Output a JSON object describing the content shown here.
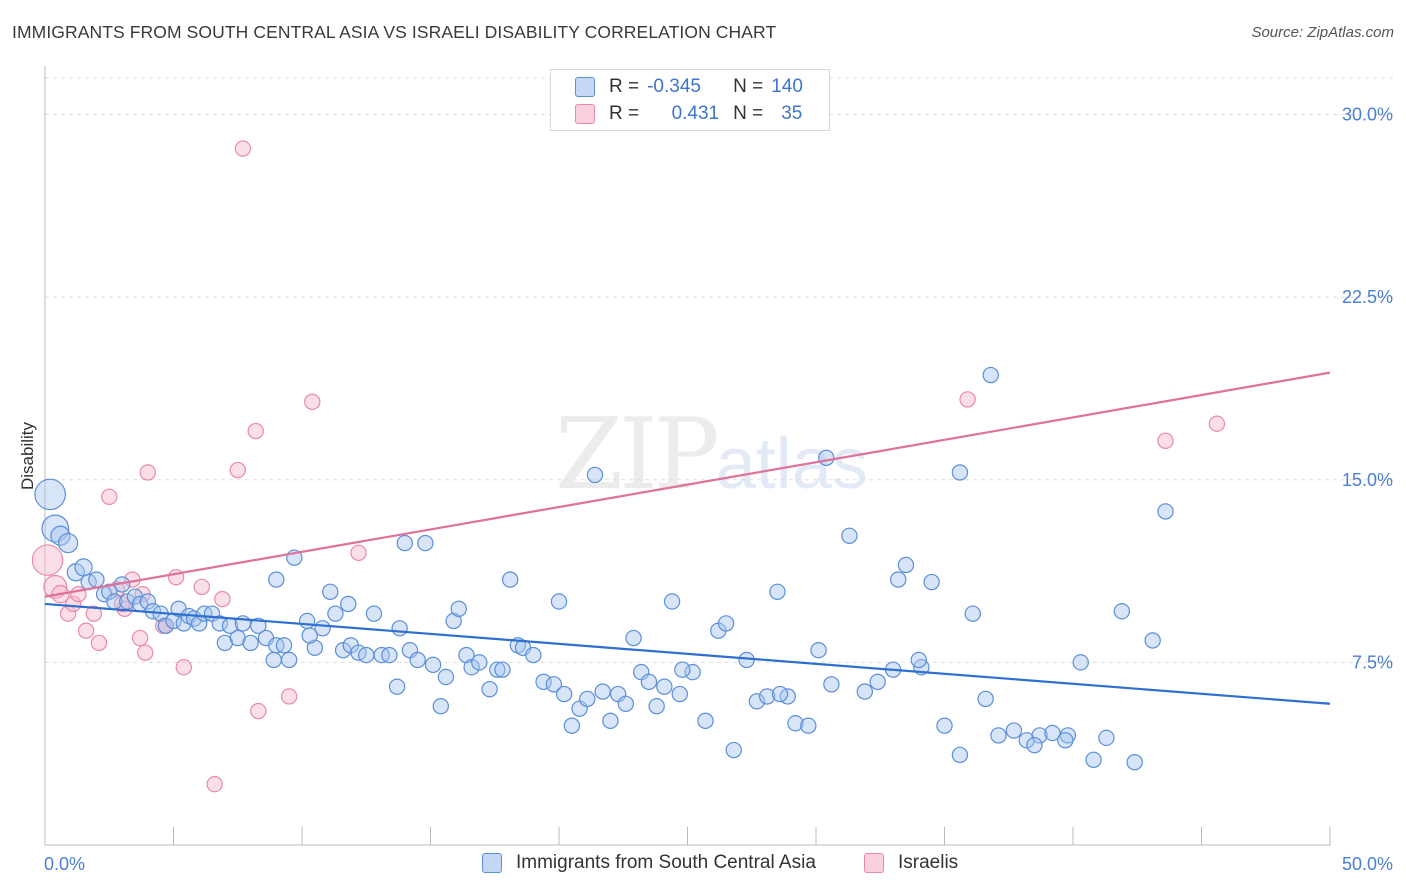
{
  "header": {
    "title": "IMMIGRANTS FROM SOUTH CENTRAL ASIA VS ISRAELI DISABILITY CORRELATION CHART",
    "source": "Source: ZipAtlas.com"
  },
  "watermark": {
    "zip": "ZIP",
    "atlas": "atlas"
  },
  "legend": {
    "rows": [
      {
        "r_label": "R =",
        "r_value": "-0.345",
        "n_label": "N =",
        "n_value": "140",
        "color": "#a9c6ef"
      },
      {
        "r_label": "R =",
        "r_value": "0.431",
        "n_label": "N =",
        "n_value": "35",
        "color": "#f6b8cc"
      }
    ]
  },
  "bottom_legend": {
    "series1": "Immigrants from South Central Asia",
    "series2": "Israelis"
  },
  "colors": {
    "blue_fill": "#a9c6ef",
    "blue_stroke": "#5b8fd8",
    "blue_line": "#2f6fd0",
    "pink_fill": "#f6b8cc",
    "pink_stroke": "#e98aa9",
    "pink_line": "#e0719a",
    "axis_text": "#4a7fd4",
    "grid": "#dddddd"
  },
  "chart_data": {
    "type": "scatter",
    "title": "IMMIGRANTS FROM SOUTH CENTRAL ASIA VS ISRAELI DISABILITY CORRELATION CHART",
    "xlabel": "",
    "ylabel": "Disability",
    "xlim": [
      0,
      50
    ],
    "ylim": [
      0,
      31.5
    ],
    "x_tick_labels": [
      "0.0%",
      "50.0%"
    ],
    "y_ticks": [
      7.5,
      15.0,
      22.5,
      30.0
    ],
    "y_tick_labels": [
      "7.5%",
      "15.0%",
      "22.5%",
      "30.0%"
    ],
    "grid": true,
    "series": [
      {
        "name": "Immigrants from South Central Asia",
        "color": "#a9c6ef",
        "trend": {
          "x": [
            0,
            50
          ],
          "y": [
            9.9,
            5.8
          ]
        },
        "points": [
          [
            0.2,
            14.4,
            1.6
          ],
          [
            0.4,
            13.0,
            1.4
          ],
          [
            0.6,
            12.7,
            1.0
          ],
          [
            0.9,
            12.4,
            1.0
          ],
          [
            1.2,
            11.2,
            0.9
          ],
          [
            1.5,
            11.4,
            0.9
          ],
          [
            1.7,
            10.8,
            0.8
          ],
          [
            2.0,
            10.9,
            0.8
          ],
          [
            2.3,
            10.3,
            0.8
          ],
          [
            2.5,
            10.4,
            0.8
          ],
          [
            2.7,
            10.0,
            0.8
          ],
          [
            3.0,
            10.7,
            0.8
          ],
          [
            3.2,
            10.0,
            0.8
          ],
          [
            3.5,
            10.2,
            0.8
          ],
          [
            3.7,
            9.9,
            0.8
          ],
          [
            4.0,
            10.0,
            0.8
          ],
          [
            4.2,
            9.6,
            0.8
          ],
          [
            4.5,
            9.5,
            0.8
          ],
          [
            4.7,
            9.0,
            0.8
          ],
          [
            5.0,
            9.2,
            0.8
          ],
          [
            5.2,
            9.7,
            0.8
          ],
          [
            5.4,
            9.1,
            0.8
          ],
          [
            5.6,
            9.4,
            0.8
          ],
          [
            5.8,
            9.3,
            0.8
          ],
          [
            6.0,
            9.1,
            0.8
          ],
          [
            6.2,
            9.5,
            0.8
          ],
          [
            6.5,
            9.5,
            0.8
          ],
          [
            6.8,
            9.1,
            0.8
          ],
          [
            7.0,
            8.3,
            0.8
          ],
          [
            7.2,
            9.0,
            0.8
          ],
          [
            7.5,
            8.5,
            0.8
          ],
          [
            7.7,
            9.1,
            0.8
          ],
          [
            8.0,
            8.3,
            0.8
          ],
          [
            8.3,
            9.0,
            0.8
          ],
          [
            8.6,
            8.5,
            0.8
          ],
          [
            8.9,
            7.6,
            0.8
          ],
          [
            9.0,
            8.2,
            0.8
          ],
          [
            9.3,
            8.2,
            0.8
          ],
          [
            9.5,
            7.6,
            0.8
          ],
          [
            9.7,
            11.8,
            0.8
          ],
          [
            9.0,
            10.9,
            0.8
          ],
          [
            10.2,
            9.2,
            0.8
          ],
          [
            10.5,
            8.1,
            0.8
          ],
          [
            10.8,
            8.9,
            0.8
          ],
          [
            11.1,
            10.4,
            0.8
          ],
          [
            11.3,
            9.5,
            0.8
          ],
          [
            11.6,
            8.0,
            0.8
          ],
          [
            11.9,
            8.2,
            0.8
          ],
          [
            12.2,
            7.9,
            0.8
          ],
          [
            12.5,
            7.8,
            0.8
          ],
          [
            12.8,
            9.5,
            0.8
          ],
          [
            13.1,
            7.8,
            0.8
          ],
          [
            13.4,
            7.8,
            0.8
          ],
          [
            13.7,
            6.5,
            0.8
          ],
          [
            14.0,
            12.4,
            0.8
          ],
          [
            14.2,
            8.0,
            0.8
          ],
          [
            14.5,
            7.6,
            0.8
          ],
          [
            14.8,
            12.4,
            0.8
          ],
          [
            15.1,
            7.4,
            0.8
          ],
          [
            15.4,
            5.7,
            0.8
          ],
          [
            15.6,
            6.9,
            0.8
          ],
          [
            15.9,
            9.2,
            0.8
          ],
          [
            16.1,
            9.7,
            0.8
          ],
          [
            16.4,
            7.8,
            0.8
          ],
          [
            16.6,
            7.3,
            0.8
          ],
          [
            16.9,
            7.5,
            0.8
          ],
          [
            17.3,
            6.4,
            0.8
          ],
          [
            17.6,
            7.2,
            0.8
          ],
          [
            17.8,
            7.2,
            0.8
          ],
          [
            18.1,
            10.9,
            0.8
          ],
          [
            18.4,
            8.2,
            0.8
          ],
          [
            18.6,
            8.1,
            0.8
          ],
          [
            19.0,
            7.8,
            0.8
          ],
          [
            19.4,
            6.7,
            0.8
          ],
          [
            19.8,
            6.6,
            0.8
          ],
          [
            20.2,
            6.2,
            0.8
          ],
          [
            20.5,
            4.9,
            0.8
          ],
          [
            20.8,
            5.6,
            0.8
          ],
          [
            21.1,
            6.0,
            0.8
          ],
          [
            21.4,
            15.2,
            0.8
          ],
          [
            21.7,
            6.3,
            0.8
          ],
          [
            22.0,
            5.1,
            0.8
          ],
          [
            22.3,
            6.2,
            0.8
          ],
          [
            22.6,
            5.8,
            0.8
          ],
          [
            22.9,
            8.5,
            0.8
          ],
          [
            23.2,
            7.1,
            0.8
          ],
          [
            23.5,
            6.7,
            0.8
          ],
          [
            23.8,
            5.7,
            0.8
          ],
          [
            24.1,
            6.5,
            0.8
          ],
          [
            24.4,
            10.0,
            0.8
          ],
          [
            24.7,
            6.2,
            0.8
          ],
          [
            25.2,
            7.1,
            0.8
          ],
          [
            25.7,
            5.1,
            0.8
          ],
          [
            26.2,
            8.8,
            0.8
          ],
          [
            26.5,
            9.1,
            0.8
          ],
          [
            26.8,
            3.9,
            0.8
          ],
          [
            27.3,
            7.6,
            0.8
          ],
          [
            27.7,
            5.9,
            0.8
          ],
          [
            28.1,
            6.1,
            0.8
          ],
          [
            28.5,
            10.4,
            0.8
          ],
          [
            28.9,
            6.1,
            0.8
          ],
          [
            29.2,
            5.0,
            0.8
          ],
          [
            29.7,
            4.9,
            0.8
          ],
          [
            30.1,
            8.0,
            0.8
          ],
          [
            30.6,
            6.6,
            0.8
          ],
          [
            31.3,
            12.7,
            0.8
          ],
          [
            31.9,
            6.3,
            0.8
          ],
          [
            32.4,
            6.7,
            0.8
          ],
          [
            33.0,
            7.2,
            0.8
          ],
          [
            33.5,
            11.5,
            0.8
          ],
          [
            34.1,
            7.3,
            0.8
          ],
          [
            34.5,
            10.8,
            0.8
          ],
          [
            35.0,
            4.9,
            0.8
          ],
          [
            35.6,
            3.7,
            0.8
          ],
          [
            36.1,
            9.5,
            0.8
          ],
          [
            36.6,
            6.0,
            0.8
          ],
          [
            37.1,
            4.5,
            0.8
          ],
          [
            37.7,
            4.7,
            0.8
          ],
          [
            38.2,
            4.3,
            0.8
          ],
          [
            38.7,
            4.5,
            0.8
          ],
          [
            39.2,
            4.6,
            0.8
          ],
          [
            39.8,
            4.5,
            0.8
          ],
          [
            40.3,
            7.5,
            0.8
          ],
          [
            40.8,
            3.5,
            0.8
          ],
          [
            41.3,
            4.4,
            0.8
          ],
          [
            41.9,
            9.6,
            0.8
          ],
          [
            42.4,
            3.4,
            0.8
          ],
          [
            43.1,
            8.4,
            0.8
          ],
          [
            43.6,
            13.7,
            0.8
          ],
          [
            30.4,
            15.9,
            0.8
          ],
          [
            35.6,
            15.3,
            0.8
          ],
          [
            36.8,
            19.3,
            0.8
          ],
          [
            38.5,
            4.1,
            0.8
          ],
          [
            39.7,
            4.3,
            0.8
          ],
          [
            20.0,
            10.0,
            0.8
          ],
          [
            24.8,
            7.2,
            0.8
          ],
          [
            28.6,
            6.2,
            0.8
          ],
          [
            33.2,
            10.9,
            0.8
          ],
          [
            34.0,
            7.6,
            0.8
          ],
          [
            13.8,
            8.9,
            0.8
          ],
          [
            11.8,
            9.9,
            0.8
          ],
          [
            10.3,
            8.6,
            0.8
          ]
        ]
      },
      {
        "name": "Israelis",
        "color": "#f6b8cc",
        "trend": {
          "x": [
            0,
            50
          ],
          "y": [
            10.2,
            19.4
          ]
        },
        "points": [
          [
            0.1,
            11.7,
            1.6
          ],
          [
            0.4,
            10.6,
            1.2
          ],
          [
            0.6,
            10.3,
            0.9
          ],
          [
            0.9,
            9.5,
            0.8
          ],
          [
            1.1,
            9.9,
            0.8
          ],
          [
            1.3,
            10.3,
            0.8
          ],
          [
            1.6,
            8.8,
            0.8
          ],
          [
            1.9,
            9.5,
            0.8
          ],
          [
            2.1,
            8.3,
            0.8
          ],
          [
            2.5,
            14.3,
            0.8
          ],
          [
            2.8,
            10.5,
            0.8
          ],
          [
            3.1,
            9.7,
            0.8
          ],
          [
            3.4,
            10.9,
            0.8
          ],
          [
            3.7,
            8.5,
            0.8
          ],
          [
            3.9,
            7.9,
            0.8
          ],
          [
            4.0,
            15.3,
            0.8
          ],
          [
            4.6,
            9.0,
            0.8
          ],
          [
            5.1,
            11.0,
            0.8
          ],
          [
            5.4,
            7.3,
            0.8
          ],
          [
            6.1,
            10.6,
            0.8
          ],
          [
            6.6,
            2.5,
            0.8
          ],
          [
            6.9,
            10.1,
            0.8
          ],
          [
            7.5,
            15.4,
            0.8
          ],
          [
            7.7,
            28.6,
            0.8
          ],
          [
            8.2,
            17.0,
            0.8
          ],
          [
            8.3,
            5.5,
            0.8
          ],
          [
            9.5,
            6.1,
            0.8
          ],
          [
            10.4,
            18.2,
            0.8
          ],
          [
            12.2,
            12.0,
            0.8
          ],
          [
            35.9,
            18.3,
            0.8
          ],
          [
            43.6,
            16.6,
            0.8
          ],
          [
            45.6,
            17.3,
            0.8
          ],
          [
            3.8,
            10.3,
            0.8
          ],
          [
            4.7,
            9.0,
            0.8
          ],
          [
            3.0,
            9.9,
            0.8
          ]
        ]
      }
    ]
  }
}
